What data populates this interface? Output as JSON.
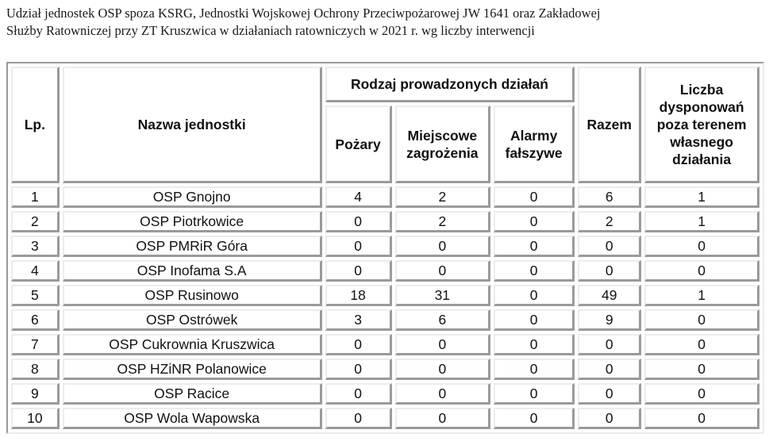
{
  "caption": {
    "line1": "Udział jednostek OSP spoza KSRG, Jednostki Wojskowej Ochrony Przeciwpożarowej JW 1641 oraz Zakładowej",
    "line2": "Służby Ratowniczej przy ZT Kruszwica w działaniach ratowniczych w 2021 r. wg liczby interwencji"
  },
  "table": {
    "headers": {
      "lp": "Lp.",
      "name": "Nazwa jednostki",
      "group": "Rodzaj prowadzonych działań",
      "fires": "Pożary",
      "local_threats": "Miejscowe zagrożenia",
      "false_alarms": "Alarmy fałszywe",
      "total": "Razem",
      "outside": "Liczba dysponowań poza terenem własnego działania"
    },
    "rows": [
      {
        "lp": "1",
        "name": "OSP Gnojno",
        "fires": "4",
        "local_threats": "2",
        "false_alarms": "0",
        "total": "6",
        "outside": "1"
      },
      {
        "lp": "2",
        "name": "OSP Piotrkowice",
        "fires": "0",
        "local_threats": "2",
        "false_alarms": "0",
        "total": "2",
        "outside": "1"
      },
      {
        "lp": "3",
        "name": "OSP PMRiR Góra",
        "fires": "0",
        "local_threats": "0",
        "false_alarms": "0",
        "total": "0",
        "outside": "0"
      },
      {
        "lp": "4",
        "name": "OSP Inofama S.A",
        "fires": "0",
        "local_threats": "0",
        "false_alarms": "0",
        "total": "0",
        "outside": "0"
      },
      {
        "lp": "5",
        "name": "OSP Rusinowo",
        "fires": "18",
        "local_threats": "31",
        "false_alarms": "0",
        "total": "49",
        "outside": "1"
      },
      {
        "lp": "6",
        "name": "OSP Ostrówek",
        "fires": "3",
        "local_threats": "6",
        "false_alarms": "0",
        "total": "9",
        "outside": "0"
      },
      {
        "lp": "7",
        "name": "OSP Cukrownia Kruszwica",
        "fires": "0",
        "local_threats": "0",
        "false_alarms": "0",
        "total": "0",
        "outside": "0"
      },
      {
        "lp": "8",
        "name": "OSP HZiNR Polanowice",
        "fires": "0",
        "local_threats": "0",
        "false_alarms": "0",
        "total": "0",
        "outside": "0"
      },
      {
        "lp": "9",
        "name": "OSP Racice",
        "fires": "0",
        "local_threats": "0",
        "false_alarms": "0",
        "total": "0",
        "outside": "0"
      },
      {
        "lp": "10",
        "name": "OSP Wola Wapowska",
        "fires": "0",
        "local_threats": "0",
        "false_alarms": "0",
        "total": "0",
        "outside": "0"
      }
    ]
  }
}
